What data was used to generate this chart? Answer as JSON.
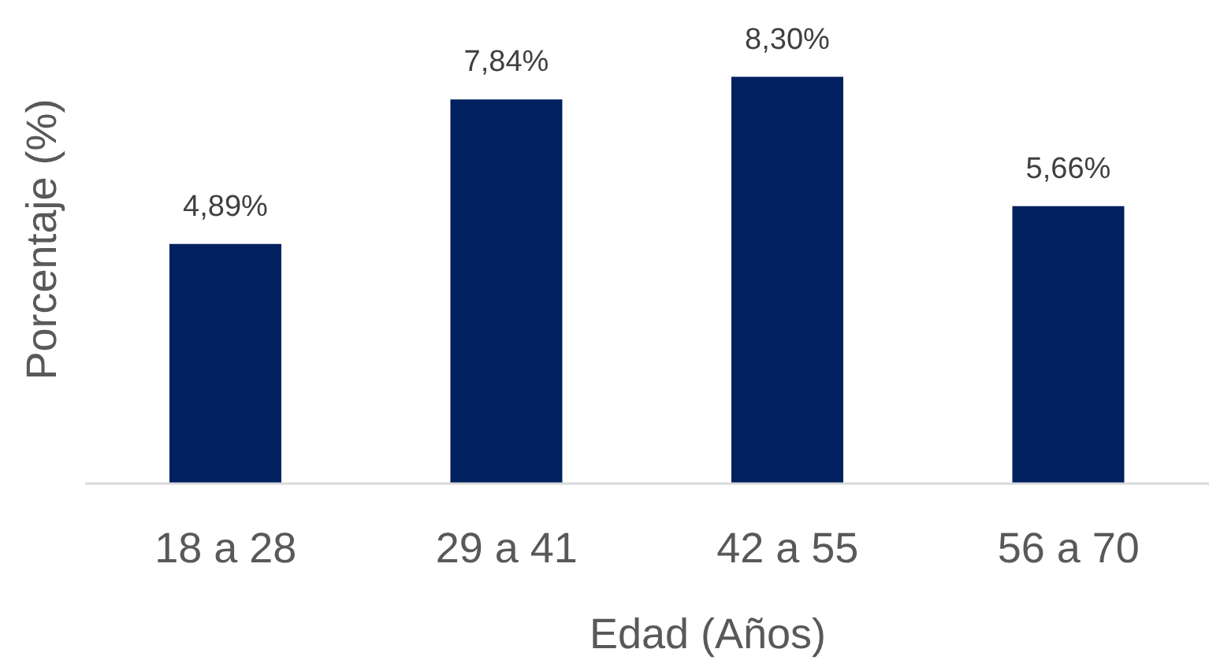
{
  "chart_data": {
    "type": "bar",
    "xlabel": "Edad (Años)",
    "ylabel": "Porcentaje (%)",
    "categories": [
      "18 a 28",
      "29 a 41",
      "42 a 55",
      "56 a 70"
    ],
    "values": [
      4.89,
      7.84,
      8.3,
      5.66
    ],
    "color": "#002060",
    "value_labels": [
      "4,89%",
      "7,84%",
      "8,30%",
      "5,66%"
    ]
  }
}
